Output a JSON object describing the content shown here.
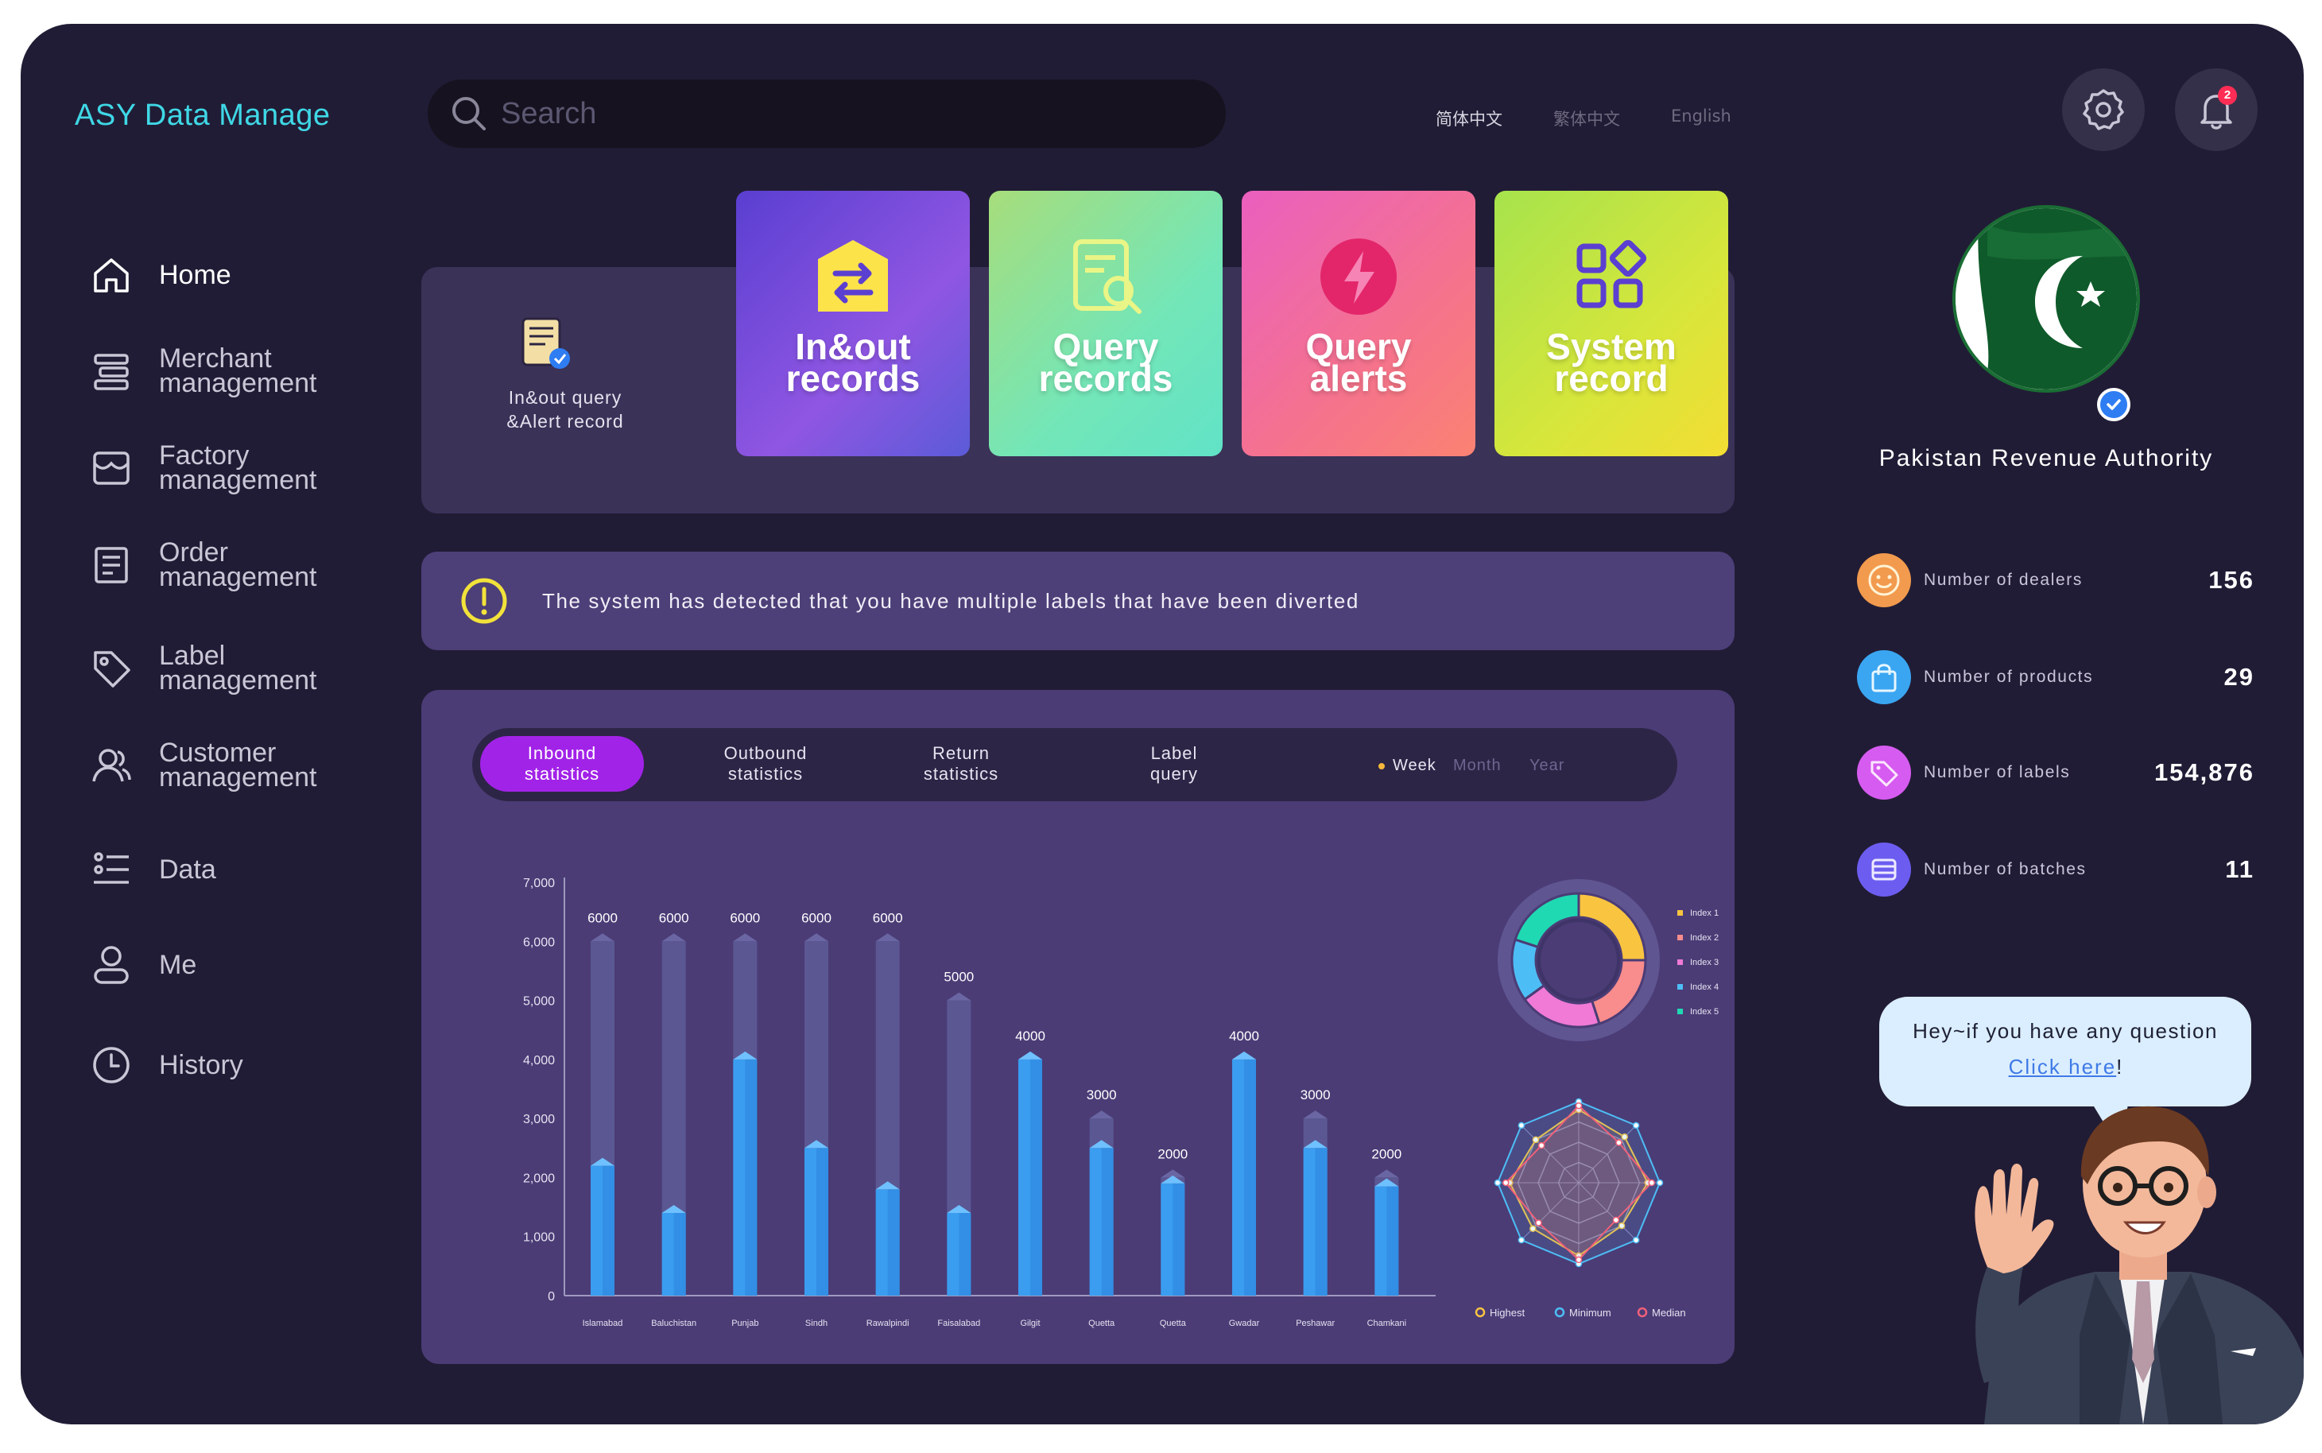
{
  "app": {
    "title": "ASY Data Manage"
  },
  "search": {
    "placeholder": "Search"
  },
  "languages": [
    {
      "label": "简体中文",
      "active": true
    },
    {
      "label": "繁体中文",
      "active": false
    },
    {
      "label": "English",
      "active": false
    }
  ],
  "notifications": {
    "count": "2",
    "icon": "bell-icon"
  },
  "settings": {
    "icon": "gear-icon"
  },
  "sidebar": {
    "items": [
      {
        "label": "Home",
        "icon": "home-icon"
      },
      {
        "label": "Merchant\nmanagement",
        "icon": "merchant-icon"
      },
      {
        "label": "Factory\nmanagement",
        "icon": "factory-icon"
      },
      {
        "label": "Order\nmanagement",
        "icon": "order-icon"
      },
      {
        "label": "Label\nmanagement",
        "icon": "label-icon"
      },
      {
        "label": "Customer\nmanagement",
        "icon": "customer-icon"
      },
      {
        "label": "Data",
        "icon": "data-icon"
      },
      {
        "label": "Me",
        "icon": "user-icon"
      },
      {
        "label": "History",
        "icon": "history-icon"
      }
    ]
  },
  "quick": {
    "label": "In&out query\n&Alert record",
    "cards": [
      {
        "label": "In&out\nrecords",
        "icon": "swap-icon"
      },
      {
        "label": "Query\nrecords",
        "icon": "document-search-icon"
      },
      {
        "label": "Query\nalerts",
        "icon": "lightning-icon"
      },
      {
        "label": "System\nrecord",
        "icon": "grid-icon"
      }
    ]
  },
  "alert": {
    "message": "The system has detected that you have multiple labels that have been diverted"
  },
  "stats": {
    "tabs": [
      "Inbound\nstatistics",
      "Outbound\nstatistics",
      "Return\nstatistics",
      "Label\nquery"
    ],
    "periods": [
      "Week",
      "Month",
      "Year"
    ]
  },
  "chart_data": [
    {
      "type": "bar",
      "categories": [
        "Islamabad",
        "Baluchistan",
        "Punjab",
        "Sindh",
        "Rawalpindi",
        "Faisalabad",
        "Gilgit",
        "Quetta",
        "Quetta",
        "Gwadar",
        "Peshawar",
        "Chamkani"
      ],
      "values": [
        6000,
        6000,
        6000,
        6000,
        6000,
        5000,
        4000,
        3000,
        2000,
        4000,
        3000,
        2000
      ],
      "filled": [
        2200,
        1400,
        4000,
        2500,
        1800,
        1400,
        4000,
        2500,
        1900,
        4000,
        2500,
        1850
      ],
      "ylim": [
        0,
        7000
      ],
      "yticks": [
        "0",
        "1,000",
        "2,000",
        "3,000",
        "4,000",
        "5,000",
        "6,000",
        "7,000"
      ],
      "data_labels": [
        "6000",
        "6000",
        "6000",
        "6000",
        "6000",
        "5000",
        "4000",
        "3000",
        "2000",
        "4000",
        "3000",
        "2000"
      ],
      "colors": {
        "bar_bg": "#5b5792",
        "bar_fill": "#3a9df0"
      }
    },
    {
      "type": "pie",
      "legend": [
        "Index 1",
        "Index 2",
        "Index 3",
        "Index 4",
        "Index 5"
      ],
      "values": [
        25,
        20,
        20,
        15,
        20
      ],
      "colors": [
        "#f9c440",
        "#f98c8c",
        "#f07ad6",
        "#4dbef5",
        "#1fd9b3"
      ]
    },
    {
      "type": "radar",
      "legend": [
        "Highest",
        "Minimum",
        "Median"
      ],
      "axes": 8,
      "series": [
        {
          "name": "Highest",
          "values": [
            0.9,
            0.8,
            0.85,
            0.75,
            0.9,
            0.8,
            0.85,
            0.75
          ],
          "color": "#f9c440"
        },
        {
          "name": "Minimum",
          "values": [
            1,
            1,
            1,
            1,
            1,
            1,
            1,
            1
          ],
          "color": "#4dbef5"
        },
        {
          "name": "Median",
          "values": [
            0.95,
            0.7,
            0.9,
            0.65,
            0.95,
            0.7,
            0.9,
            0.65
          ],
          "color": "#f0607a"
        }
      ]
    }
  ],
  "profile": {
    "name": "Pakistan Revenue Authority"
  },
  "metrics": [
    {
      "label": "Number of dealers",
      "value": "156",
      "icon": "smile-icon",
      "color": "#f29a4e"
    },
    {
      "label": "Number of products",
      "value": "29",
      "icon": "shopping-bag-icon",
      "color": "#3aa6f2"
    },
    {
      "label": "Number of labels",
      "value": "154,876",
      "icon": "tag-icon",
      "color": "#d65bf0"
    },
    {
      "label": "Number of batches",
      "value": "11",
      "icon": "layers-icon",
      "color": "#6c5df0"
    }
  ],
  "help": {
    "question": "Hey~if you have any question",
    "link": "Click here",
    "suffix": "!"
  }
}
